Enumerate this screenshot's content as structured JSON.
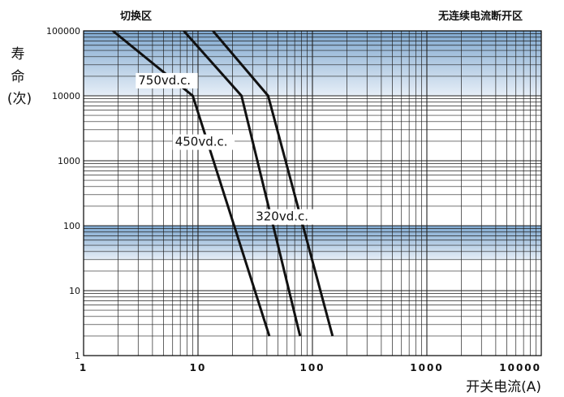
{
  "chart_data": {
    "type": "line",
    "title": "",
    "xlabel": "开关电流(A)",
    "ylabel_lines": [
      "寿",
      "命",
      "(次)"
    ],
    "x_scale": "log",
    "y_scale": "log",
    "xlim": [
      1,
      10000
    ],
    "ylim": [
      1,
      100000
    ],
    "x_ticks": [
      {
        "value": 1,
        "label": "1"
      },
      {
        "value": 10,
        "label": "10"
      },
      {
        "value": 100,
        "label": "100"
      },
      {
        "value": 1000,
        "label": "1000"
      },
      {
        "value": 10000,
        "label": "10000"
      }
    ],
    "y_ticks": [
      {
        "value": 1,
        "label": "1"
      },
      {
        "value": 10,
        "label": "10"
      },
      {
        "value": 100,
        "label": "100"
      },
      {
        "value": 1000,
        "label": "1000"
      },
      {
        "value": 10000,
        "label": "10000"
      },
      {
        "value": 100000,
        "label": "100000"
      }
    ],
    "grid": true,
    "shaded_bands": [
      {
        "y_from": 10000,
        "y_to": 100000,
        "color_top": "#7fa8cf",
        "color_bottom": "#e6eef7"
      },
      {
        "y_from": 30,
        "y_to": 100,
        "color_top": "#7fa8cf",
        "color_bottom": "#e6eef7"
      }
    ],
    "region_labels": [
      {
        "text": "切换区",
        "anchor_x": 5,
        "anchor_y": "top"
      },
      {
        "text": "无连续电流断开区",
        "anchor_x": 1900,
        "anchor_y": "top"
      }
    ],
    "series": [
      {
        "name": "750vd.c.",
        "points": [
          [
            1.8,
            100000
          ],
          [
            9,
            10000
          ],
          [
            42,
            2
          ]
        ],
        "label_at": [
          3,
          15000
        ]
      },
      {
        "name": "450vd.c.",
        "points": [
          [
            7.5,
            100000
          ],
          [
            24,
            10000
          ],
          [
            78,
            2
          ]
        ],
        "label_at": [
          6.3,
          1700
        ]
      },
      {
        "name": "320vd.c.",
        "points": [
          [
            13.5,
            100000
          ],
          [
            41,
            10000
          ],
          [
            150,
            2
          ]
        ],
        "label_at": [
          32,
          120
        ]
      }
    ],
    "colors": {
      "line": "#111111",
      "grid": "#222222",
      "axis": "#000000"
    }
  }
}
